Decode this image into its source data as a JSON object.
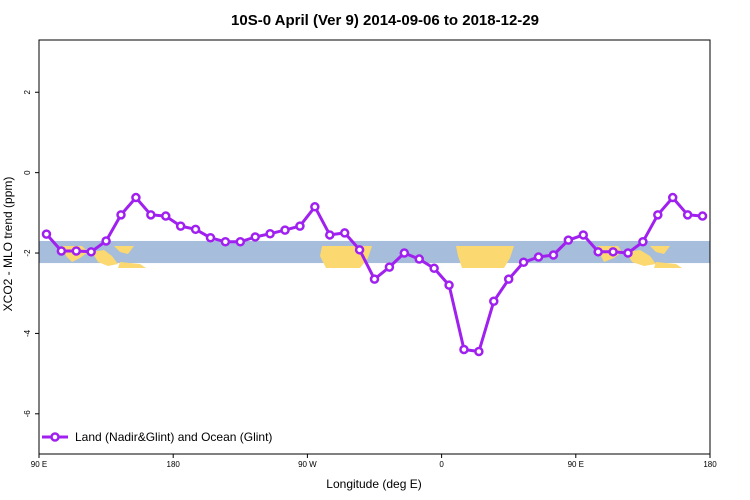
{
  "colors": {
    "series": "#a020f0",
    "band": "#a6bddb",
    "land": "#fbd870",
    "frame": "#000000"
  },
  "chart_data": {
    "type": "line",
    "title": "10S-0 April (Ver 9)   2014-09-06 to 2018-12-29",
    "xlabel": "Longitude (deg E)",
    "ylabel": "XCO2 - MLO trend (ppm)",
    "xlim": [
      90,
      540
    ],
    "ylim": [
      -7,
      3.3
    ],
    "x_ticks": [
      {
        "value": 90,
        "label": "90 E"
      },
      {
        "value": 180,
        "label": "180"
      },
      {
        "value": 270,
        "label": "90 W"
      },
      {
        "value": 360,
        "label": "0"
      },
      {
        "value": 450,
        "label": "90 E"
      },
      {
        "value": 540,
        "label": "180"
      }
    ],
    "y_ticks": [
      {
        "value": 2,
        "label": "2"
      },
      {
        "value": 0,
        "label": "0"
      },
      {
        "value": -2,
        "label": "-2"
      },
      {
        "value": -4,
        "label": "-4"
      },
      {
        "value": -6,
        "label": "-6"
      }
    ],
    "band_range": [
      -2.25,
      -1.7
    ],
    "legend_position": "bottom-left",
    "series": [
      {
        "name": "Land (Nadir&Glint) and Ocean (Glint)",
        "x": [
          95,
          105,
          115,
          125,
          135,
          145,
          155,
          165,
          175,
          185,
          195,
          205,
          215,
          225,
          235,
          245,
          255,
          265,
          275,
          285,
          295,
          305,
          315,
          325,
          335,
          345,
          355,
          365,
          375,
          385,
          395,
          405,
          415,
          425,
          435,
          445,
          455,
          465,
          475,
          485,
          495,
          505,
          515,
          525,
          535
        ],
        "y": [
          -1.53,
          -1.95,
          -1.95,
          -1.97,
          -1.7,
          -1.05,
          -0.62,
          -1.05,
          -1.08,
          -1.33,
          -1.41,
          -1.62,
          -1.72,
          -1.72,
          -1.6,
          -1.52,
          -1.43,
          -1.33,
          -0.85,
          -1.55,
          -1.5,
          -1.92,
          -2.65,
          -2.35,
          -2.0,
          -2.15,
          -2.38,
          -2.8,
          -4.4,
          -4.45,
          -3.2,
          -2.65,
          -2.23,
          -2.1,
          -2.05,
          -1.68,
          -1.55,
          -1.97,
          -1.97,
          -2.0,
          -1.72,
          -1.05,
          -0.62,
          -1.05,
          -1.08
        ]
      }
    ]
  }
}
